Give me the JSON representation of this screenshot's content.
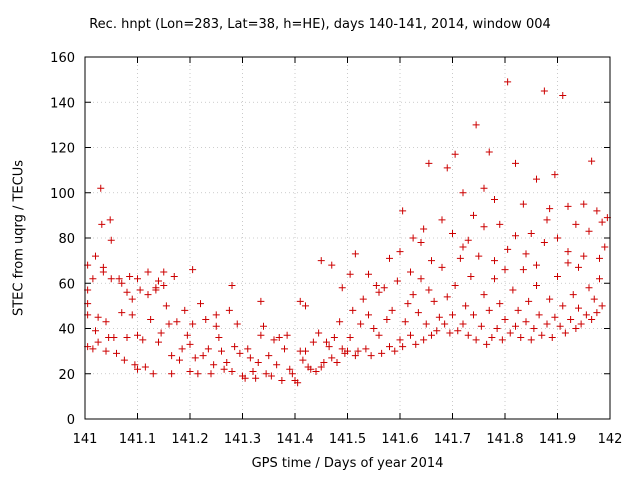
{
  "chart_data": {
    "type": "scatter",
    "title": "Rec. hnpt (Lon=283, Lat=38, h=HE), days 140-141, 2014, window 004",
    "xlabel": "GPS time / Days of year 2014",
    "ylabel": "STEC from uqrg / TECUs",
    "xlim": [
      141,
      142
    ],
    "ylim": [
      0,
      160
    ],
    "xticks": [
      "141",
      "141.1",
      "141.2",
      "141.3",
      "141.4",
      "141.5",
      "141.6",
      "141.7",
      "141.8",
      "141.9",
      "142"
    ],
    "yticks": [
      "0",
      "20",
      "40",
      "60",
      "80",
      "100",
      "120",
      "140",
      "160"
    ],
    "grid": true,
    "legend": "none",
    "marker": "plus",
    "color": "#cc0000",
    "points": [
      [
        141.005,
        32
      ],
      [
        141.005,
        68
      ],
      [
        141.005,
        57
      ],
      [
        141.005,
        51
      ],
      [
        141.005,
        46
      ],
      [
        141.015,
        31
      ],
      [
        141.015,
        62
      ],
      [
        141.02,
        72
      ],
      [
        141.02,
        39
      ],
      [
        141.025,
        45
      ],
      [
        141.025,
        34
      ],
      [
        141.03,
        102
      ],
      [
        141.032,
        86
      ],
      [
        141.035,
        67
      ],
      [
        141.035,
        65
      ],
      [
        141.04,
        43
      ],
      [
        141.04,
        30
      ],
      [
        141.045,
        36
      ],
      [
        141.048,
        88
      ],
      [
        141.05,
        79
      ],
      [
        141.05,
        62
      ],
      [
        141.055,
        36
      ],
      [
        141.06,
        29
      ],
      [
        141.065,
        62
      ],
      [
        141.07,
        60
      ],
      [
        141.07,
        47
      ],
      [
        141.075,
        26
      ],
      [
        141.08,
        36
      ],
      [
        141.085,
        63
      ],
      [
        141.09,
        53
      ],
      [
        141.09,
        46
      ],
      [
        141.095,
        24
      ],
      [
        141.1,
        37
      ],
      [
        141.1,
        22
      ],
      [
        141.105,
        57
      ],
      [
        141.11,
        35
      ],
      [
        141.115,
        23
      ],
      [
        141.12,
        55
      ],
      [
        141.125,
        44
      ],
      [
        141.13,
        20
      ],
      [
        141.135,
        57
      ],
      [
        141.135,
        58
      ],
      [
        141.14,
        34
      ],
      [
        141.145,
        38
      ],
      [
        141.15,
        65
      ],
      [
        141.155,
        50
      ],
      [
        141.16,
        42
      ],
      [
        141.165,
        20
      ],
      [
        141.165,
        28
      ],
      [
        141.17,
        63
      ],
      [
        141.175,
        43
      ],
      [
        141.18,
        26
      ],
      [
        141.185,
        31
      ],
      [
        141.19,
        48
      ],
      [
        141.195,
        37
      ],
      [
        141.2,
        33
      ],
      [
        141.2,
        21
      ],
      [
        141.205,
        42
      ],
      [
        141.21,
        27
      ],
      [
        141.215,
        20
      ],
      [
        141.22,
        51
      ],
      [
        141.225,
        28
      ],
      [
        141.23,
        44
      ],
      [
        141.235,
        31
      ],
      [
        141.24,
        20
      ],
      [
        141.245,
        24
      ],
      [
        141.25,
        41
      ],
      [
        141.255,
        36
      ],
      [
        141.26,
        30
      ],
      [
        141.265,
        22
      ],
      [
        141.27,
        25
      ],
      [
        141.275,
        48
      ],
      [
        141.28,
        21
      ],
      [
        141.285,
        32
      ],
      [
        141.29,
        42
      ],
      [
        141.295,
        29
      ],
      [
        141.3,
        19
      ],
      [
        141.305,
        18
      ],
      [
        141.31,
        31
      ],
      [
        141.315,
        27
      ],
      [
        141.32,
        21
      ],
      [
        141.325,
        18
      ],
      [
        141.33,
        25
      ],
      [
        141.335,
        37
      ],
      [
        141.34,
        41
      ],
      [
        141.345,
        20
      ],
      [
        141.35,
        28
      ],
      [
        141.355,
        19
      ],
      [
        141.36,
        35
      ],
      [
        141.365,
        24
      ],
      [
        141.37,
        36
      ],
      [
        141.375,
        17
      ],
      [
        141.38,
        31
      ],
      [
        141.385,
        37
      ],
      [
        141.39,
        22
      ],
      [
        141.395,
        20
      ],
      [
        141.4,
        17
      ],
      [
        141.405,
        16
      ],
      [
        141.41,
        30
      ],
      [
        141.415,
        26
      ],
      [
        141.42,
        30
      ],
      [
        141.425,
        23
      ],
      [
        141.43,
        22
      ],
      [
        141.435,
        34
      ],
      [
        141.44,
        21
      ],
      [
        141.445,
        38
      ],
      [
        141.45,
        23
      ],
      [
        141.455,
        25
      ],
      [
        141.46,
        34
      ],
      [
        141.465,
        32
      ],
      [
        141.47,
        27
      ],
      [
        141.475,
        36
      ],
      [
        141.48,
        25
      ],
      [
        141.485,
        43
      ],
      [
        141.49,
        31
      ],
      [
        141.495,
        29
      ],
      [
        141.5,
        30
      ],
      [
        141.505,
        36
      ],
      [
        141.51,
        48
      ],
      [
        141.515,
        28
      ],
      [
        141.52,
        30
      ],
      [
        141.525,
        42
      ],
      [
        141.53,
        53
      ],
      [
        141.535,
        31
      ],
      [
        141.54,
        46
      ],
      [
        141.545,
        28
      ],
      [
        141.55,
        40
      ],
      [
        141.555,
        59
      ],
      [
        141.56,
        37
      ],
      [
        141.565,
        29
      ],
      [
        141.57,
        58
      ],
      [
        141.575,
        44
      ],
      [
        141.58,
        32
      ],
      [
        141.585,
        48
      ],
      [
        141.59,
        30
      ],
      [
        141.595,
        61
      ],
      [
        141.6,
        35
      ],
      [
        141.605,
        32
      ],
      [
        141.61,
        43
      ],
      [
        141.615,
        51
      ],
      [
        141.62,
        37
      ],
      [
        141.625,
        55
      ],
      [
        141.63,
        33
      ],
      [
        141.635,
        47
      ],
      [
        141.64,
        62
      ],
      [
        141.645,
        35
      ],
      [
        141.65,
        42
      ],
      [
        141.655,
        57
      ],
      [
        141.66,
        37
      ],
      [
        141.665,
        52
      ],
      [
        141.67,
        39
      ],
      [
        141.675,
        45
      ],
      [
        141.68,
        67
      ],
      [
        141.685,
        42
      ],
      [
        141.69,
        54
      ],
      [
        141.695,
        38
      ],
      [
        141.7,
        46
      ],
      [
        141.705,
        59
      ],
      [
        141.71,
        39
      ],
      [
        141.715,
        71
      ],
      [
        141.72,
        42
      ],
      [
        141.725,
        50
      ],
      [
        141.73,
        37
      ],
      [
        141.735,
        63
      ],
      [
        141.74,
        46
      ],
      [
        141.745,
        35
      ],
      [
        141.75,
        72
      ],
      [
        141.755,
        41
      ],
      [
        141.76,
        55
      ],
      [
        141.765,
        33
      ],
      [
        141.77,
        48
      ],
      [
        141.775,
        36
      ],
      [
        141.78,
        62
      ],
      [
        141.785,
        40
      ],
      [
        141.79,
        51
      ],
      [
        141.795,
        35
      ],
      [
        141.8,
        44
      ],
      [
        141.805,
        75
      ],
      [
        141.81,
        38
      ],
      [
        141.815,
        57
      ],
      [
        141.82,
        41
      ],
      [
        141.825,
        48
      ],
      [
        141.83,
        36
      ],
      [
        141.835,
        66
      ],
      [
        141.84,
        43
      ],
      [
        141.845,
        52
      ],
      [
        141.85,
        35
      ],
      [
        141.855,
        40
      ],
      [
        141.86,
        59
      ],
      [
        141.865,
        46
      ],
      [
        141.87,
        37
      ],
      [
        141.875,
        78
      ],
      [
        141.88,
        42
      ],
      [
        141.885,
        53
      ],
      [
        141.89,
        36
      ],
      [
        141.895,
        45
      ],
      [
        141.9,
        63
      ],
      [
        141.905,
        41
      ],
      [
        141.91,
        50
      ],
      [
        141.915,
        38
      ],
      [
        141.92,
        69
      ],
      [
        141.925,
        44
      ],
      [
        141.93,
        55
      ],
      [
        141.935,
        40
      ],
      [
        141.94,
        49
      ],
      [
        141.945,
        42
      ],
      [
        141.95,
        72
      ],
      [
        141.955,
        46
      ],
      [
        141.96,
        58
      ],
      [
        141.965,
        44
      ],
      [
        141.97,
        53
      ],
      [
        141.975,
        47
      ],
      [
        141.98,
        62
      ],
      [
        141.985,
        50
      ],
      [
        141.99,
        76
      ],
      [
        141.995,
        89
      ],
      [
        141.605,
        92
      ],
      [
        141.625,
        80
      ],
      [
        141.645,
        84
      ],
      [
        141.655,
        113
      ],
      [
        141.69,
        111
      ],
      [
        141.705,
        117
      ],
      [
        141.72,
        100
      ],
      [
        141.73,
        79
      ],
      [
        141.745,
        130
      ],
      [
        141.76,
        102
      ],
      [
        141.77,
        118
      ],
      [
        141.78,
        97
      ],
      [
        141.79,
        86
      ],
      [
        141.805,
        149
      ],
      [
        141.82,
        113
      ],
      [
        141.835,
        95
      ],
      [
        141.85,
        82
      ],
      [
        141.86,
        106
      ],
      [
        141.875,
        145
      ],
      [
        141.885,
        93
      ],
      [
        141.895,
        108
      ],
      [
        141.91,
        143
      ],
      [
        141.92,
        94
      ],
      [
        141.935,
        86
      ],
      [
        141.95,
        95
      ],
      [
        141.965,
        114
      ],
      [
        141.975,
        92
      ],
      [
        141.985,
        87
      ],
      [
        141.515,
        73
      ],
      [
        141.54,
        64
      ],
      [
        141.56,
        56
      ],
      [
        141.58,
        71
      ],
      [
        141.6,
        74
      ],
      [
        141.62,
        65
      ],
      [
        141.64,
        78
      ],
      [
        141.66,
        70
      ],
      [
        141.68,
        88
      ],
      [
        141.7,
        82
      ],
      [
        141.72,
        76
      ],
      [
        141.74,
        90
      ],
      [
        141.76,
        85
      ],
      [
        141.78,
        70
      ],
      [
        141.8,
        66
      ],
      [
        141.82,
        81
      ],
      [
        141.84,
        73
      ],
      [
        141.86,
        68
      ],
      [
        141.88,
        88
      ],
      [
        141.9,
        80
      ],
      [
        141.92,
        74
      ],
      [
        141.94,
        67
      ],
      [
        141.96,
        83
      ],
      [
        141.98,
        71
      ],
      [
        141.45,
        70
      ],
      [
        141.47,
        68
      ],
      [
        141.49,
        58
      ],
      [
        141.505,
        64
      ],
      [
        141.42,
        50
      ],
      [
        141.41,
        52
      ],
      [
        141.335,
        52
      ],
      [
        141.28,
        59
      ],
      [
        141.25,
        46
      ],
      [
        141.205,
        66
      ],
      [
        141.15,
        59
      ],
      [
        141.14,
        61
      ],
      [
        141.12,
        65
      ],
      [
        141.1,
        62
      ],
      [
        141.08,
        56
      ]
    ]
  }
}
